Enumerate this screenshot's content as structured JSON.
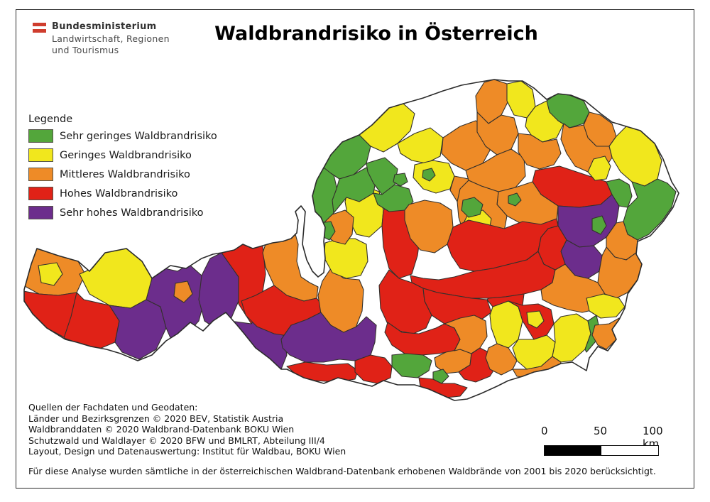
{
  "header": {
    "logo_lines": [
      "Bundesministerium",
      "Landwirtschaft, Regionen",
      "und Tourismus"
    ],
    "title": "Waldbrandrisiko in Österreich"
  },
  "legend": {
    "title": "Legende",
    "items": [
      {
        "key": "g",
        "label": "Sehr geringes Waldbrandrisiko"
      },
      {
        "key": "y",
        "label": "Geringes Waldbrandrisiko"
      },
      {
        "key": "o",
        "label": "Mittleres Waldbrandrisiko"
      },
      {
        "key": "r",
        "label": "Hohes Waldbrandrisiko"
      },
      {
        "key": "p",
        "label": "Sehr hohes Waldbrandrisiko"
      }
    ]
  },
  "colors": {
    "g": "#53a63b",
    "y": "#f1e71d",
    "o": "#ee8b27",
    "r": "#e02217",
    "p": "#6c2d8c",
    "district_stroke": "#33302c",
    "outline_stroke": "#2b2b2b",
    "flag_red": "#cf3d2e"
  },
  "sources": {
    "lines": [
      "Quellen der Fachdaten und Geodaten:",
      "Länder und Bezirksgrenzen © 2020 BEV, Statistik Austria",
      "Waldbranddaten © 2020 Waldbrand-Datenbank BOKU Wien",
      "Schutzwald und Waldlayer © 2020 BFW und BMLRT, Abteilung III/4",
      "Layout, Design und Datenauswertung: Institut für Waldbau, BOKU Wien"
    ]
  },
  "footnote": "Für diese Analyse wurden sämtliche in der österreichischen Waldbrand-Datenbank erhobenen Waldbrände von 2001 bis 2020 berücksichtigt.",
  "scalebar": {
    "labels": [
      "0",
      "50",
      "100 km"
    ]
  },
  "map": {
    "outline": "34,408 44,372 52,350 82,360 110,368 126,382 148,356 178,350 200,368 214,392 240,374 262,378 284,364 300,358 312,356 330,352 342,344 356,350 370,346 384,342 398,340 410,336 418,328 420,310 416,298 424,290 430,298 428,320 426,344 432,366 440,382 448,390 456,384 458,364 456,340 458,320 452,306 444,298 440,276 446,254 456,236 466,218 482,200 506,190 524,176 548,152 568,146 596,138 624,128 650,120 672,116 696,112 716,114 736,114 752,124 770,140 786,132 804,134 824,142 846,160 862,172 882,178 902,184 922,202 934,224 946,256 956,272 948,292 934,312 916,332 898,340 896,358 904,372 898,394 884,414 880,434 872,450 862,464 868,478 856,494 842,488 830,504 826,522 806,510 790,512 772,520 752,524 736,530 716,536 700,544 678,554 658,562 640,564 622,556 604,548 584,542 560,542 540,536 524,544 500,538 476,532 456,540 428,532 404,520 396,520 380,505 360,490 344,470 334,458 318,440 300,452 286,466 268,454 250,470 234,480 214,500 194,508 170,498 150,492 128,488 108,482 92,478 66,462 46,442 34,424",
    "cells": [
      {
        "c": "o",
        "p": "33,402 40,362 52,350 82,360 110,368 120,386 108,412 82,416 55,414"
      },
      {
        "c": "r",
        "p": "33,410 55,414 82,416 108,412 118,422 112,458 92,476 66,462 46,442 34,424"
      },
      {
        "c": "y",
        "p": "112,386 130,378 148,356 178,350 200,368 214,392 206,422 184,434 154,430 126,414"
      },
      {
        "c": "r",
        "p": "100,446 108,412 118,422 154,430 168,452 162,482 138,492 112,484 90,476"
      },
      {
        "c": "p",
        "p": "154,430 184,434 206,422 226,432 234,462 220,492 196,506 172,496 162,482 168,452"
      },
      {
        "c": "p",
        "p": "206,422 214,392 232,378 250,382 266,372 284,388 288,422 280,452 262,472 242,480 234,462 226,432"
      },
      {
        "c": "p",
        "p": "284,388 296,364 312,356 330,352 340,390 336,424 324,452 306,464 288,452 280,422"
      },
      {
        "c": "r",
        "p": "312,356 330,352 342,344 356,350 370,346 374,386 370,410 366,440 354,456 336,428 336,390"
      },
      {
        "c": "p",
        "p": "306,464 324,452 354,456 366,440 386,452 398,466 404,500 396,520 372,504 348,484 326,458"
      },
      {
        "c": "o",
        "p": "374,344 390,340 404,336 416,330 420,344 418,368 424,390 436,398 448,404 446,420 428,424 404,416 386,402 374,376 370,356"
      },
      {
        "c": "r",
        "p": "340,424 360,416 386,402 404,416 428,424 446,420 456,432 452,456 436,468 412,474 386,470 362,460 346,444"
      },
      {
        "c": "o",
        "p": "454,396 466,378 484,392 506,394 512,408 510,438 500,464 480,472 462,466 452,442 448,416"
      },
      {
        "c": "y",
        "p": "458,342 478,336 500,336 516,344 518,368 508,388 488,392 468,384 456,362"
      },
      {
        "c": "y",
        "p": "490,268 514,262 534,270 540,296 538,318 520,334 502,330 490,306 486,284"
      },
      {
        "c": "o",
        "p": "448,310 468,302 486,296 498,306 496,330 486,344 470,340 456,330 450,318"
      },
      {
        "c": "r",
        "p": "540,296 560,278 578,286 590,300 592,330 588,360 580,386 562,392 548,378 540,348 538,318"
      },
      {
        "c": "g",
        "p": "442,296 440,270 448,248 456,236 470,246 476,272 470,300 456,314 446,308"
      },
      {
        "c": "g",
        "p": "456,236 466,218 482,200 506,190 522,206 516,230 498,246 478,252 466,244"
      },
      {
        "c": "g",
        "p": "474,266 478,252 498,246 516,236 530,250 526,272 506,284 488,278 470,300 468,282"
      },
      {
        "c": "g",
        "p": "516,230 542,222 560,238 556,260 538,274 526,258 518,242"
      },
      {
        "c": "g",
        "p": "526,272 538,274 556,260 576,266 582,284 570,296 548,298 532,288"
      },
      {
        "c": "y",
        "p": "506,190 522,170 548,152 568,146 584,160 578,184 560,202 540,214 522,206"
      },
      {
        "c": "y",
        "p": "560,202 584,188 606,180 624,194 620,220 600,230 580,226 564,216"
      },
      {
        "c": "y",
        "p": "584,232 610,226 632,230 640,248 634,266 614,272 596,266 582,250"
      },
      {
        "c": "o",
        "p": "640,248 660,252 676,262 674,282 658,292 644,284 634,268"
      },
      {
        "c": "o",
        "p": "576,288 598,282 620,286 636,296 638,320 630,344 612,356 592,352 578,336 570,310 570,296"
      },
      {
        "c": "o",
        "p": "624,194 648,178 670,170 690,182 692,208 680,230 656,240 636,230 622,216"
      },
      {
        "c": "o",
        "p": "670,135 682,116 696,112 714,118 716,142 706,162 688,174 672,158"
      },
      {
        "c": "y",
        "p": "714,118 734,114 750,126 754,150 742,166 724,162 714,142"
      },
      {
        "c": "o",
        "p": "672,158 688,174 706,162 724,166 730,188 720,210 700,218 684,206 672,186"
      },
      {
        "c": "o",
        "p": "656,240 680,230 700,218 720,210 738,222 740,248 726,264 702,270 678,262 660,254"
      },
      {
        "c": "y",
        "p": "742,166 754,150 770,142 790,150 794,174 784,194 764,200 748,190 740,178"
      },
      {
        "c": "g",
        "p": "770,142 784,132 802,134 822,142 830,158 822,174 802,180 786,170 774,158"
      },
      {
        "c": "o",
        "p": "830,158 846,162 862,174 868,192 858,206 840,206 828,194 822,176"
      },
      {
        "c": "y",
        "p": "868,192 882,178 902,184 922,202 932,226 926,252 908,262 890,256 874,242 862,222 858,206"
      },
      {
        "c": "o",
        "p": "794,174 802,180 822,176 828,194 840,206 858,206 862,222 850,240 828,242 810,234 798,216 790,196"
      },
      {
        "c": "o",
        "p": "730,188 748,190 764,200 784,196 790,216 780,232 760,238 742,232 730,214"
      },
      {
        "c": "r",
        "p": "754,240 788,234 824,246 854,256 862,274 846,288 816,292 786,290 762,274 750,256"
      },
      {
        "c": "o",
        "p": "702,270 726,264 750,256 762,274 786,290 784,310 762,318 736,316 714,304 700,288"
      },
      {
        "c": "o",
        "p": "660,254 678,262 702,270 700,288 714,304 710,326 692,336 668,334 652,326 646,306 644,284 648,266"
      },
      {
        "c": "y",
        "p": "660,300 680,296 692,308 688,330 672,338 658,328 654,312"
      },
      {
        "c": "r",
        "p": "638,320 660,310 686,316 710,322 736,312 762,316 784,308 786,318 772,322 762,334 758,354 742,366 718,372 694,378 668,382 648,378 636,360 630,344"
      },
      {
        "c": "r",
        "p": "578,388 596,392 618,394 640,390 668,382 694,378 718,372 742,366 758,354 766,372 782,380 778,398 762,408 738,414 712,418 688,420 664,420 640,416 616,412 596,406 580,398"
      },
      {
        "c": "r",
        "p": "534,402 548,380 562,392 580,398 596,406 598,424 608,444 600,462 582,470 562,466 546,456 536,434"
      },
      {
        "c": "r",
        "p": "596,406 616,412 640,416 664,420 686,422 692,440 678,450 650,454 626,456 608,444 598,424"
      },
      {
        "c": "r",
        "p": "688,420 712,418 738,414 736,430 730,432 716,424 694,432 686,422"
      },
      {
        "c": "o",
        "p": "762,408 778,398 782,380 796,372 810,388 828,392 842,398 852,414 844,424 838,436 820,440 800,436 780,430 764,422"
      },
      {
        "c": "p",
        "p": "786,290 816,292 846,288 862,274 872,290 868,314 854,334 836,346 816,348 798,338 786,318"
      },
      {
        "c": "p",
        "p": "798,338 816,348 836,346 848,360 844,382 828,392 810,388 796,372 790,354"
      },
      {
        "c": "r",
        "p": "786,318 798,338 790,354 796,372 782,380 766,372 758,354 762,334 772,322"
      },
      {
        "c": "g",
        "p": "890,256 908,262 926,252 940,258 952,270 946,292 932,312 914,330 898,338 884,330 878,312 884,292 898,278"
      },
      {
        "c": "g",
        "p": "854,256 862,274 872,290 884,292 890,276 886,260 872,252"
      },
      {
        "c": "o",
        "p": "854,334 868,314 878,312 884,330 898,338 896,356 882,366 866,362 854,348"
      },
      {
        "c": "o",
        "p": "844,382 848,360 854,348 866,362 882,366 896,356 904,372 898,394 884,412 868,420 852,414 842,398"
      },
      {
        "c": "p",
        "p": "396,478 410,458 432,450 452,440 466,458 484,468 502,460 516,446 530,458 528,482 522,500 500,508 478,506 456,510 430,510 408,500 398,490"
      },
      {
        "c": "r",
        "p": "404,516 430,510 460,514 490,512 504,522 500,534 472,538 444,536 420,530"
      },
      {
        "c": "r",
        "p": "500,508 522,500 542,504 552,516 550,532 532,540 512,536 500,524"
      },
      {
        "c": "r",
        "p": "546,454 566,468 590,470 614,462 626,456 640,462 648,478 640,494 618,498 594,500 570,498 552,486 542,468"
      },
      {
        "c": "g",
        "p": "552,500 572,498 596,500 608,508 604,522 588,532 566,530 552,516"
      },
      {
        "c": "o",
        "p": "612,504 628,496 648,492 664,498 662,514 646,524 628,526 614,516"
      },
      {
        "c": "r",
        "p": "590,532 610,534 622,540 640,540 658,546 648,558 628,560 608,552 592,544"
      },
      {
        "c": "o",
        "p": "626,456 640,462 648,478 640,494 648,492 664,498 676,490 686,474 684,452 668,444 648,448"
      },
      {
        "c": "r",
        "p": "646,524 662,514 664,498 676,490 692,498 700,514 690,530 670,538 654,534"
      },
      {
        "c": "y",
        "p": "694,432 716,424 730,432 736,452 730,478 716,490 700,484 692,462 690,444"
      },
      {
        "c": "r",
        "p": "716,424 736,430 758,428 776,436 780,456 770,472 752,478 736,452 730,432"
      },
      {
        "c": "y",
        "p": "730,478 752,478 770,472 782,482 778,502 762,516 742,520 728,508 722,490"
      },
      {
        "c": "y",
        "p": "782,482 780,456 790,446 812,442 828,452 832,470 824,492 806,508 790,510 778,502"
      },
      {
        "c": "g",
        "p": "828,452 840,444 844,462 838,482 826,496 824,492 832,470"
      },
      {
        "c": "y",
        "p": "826,420 850,414 872,420 880,432 868,446 846,448 830,438"
      },
      {
        "c": "o",
        "p": "700,484 716,490 728,508 722,520 706,528 690,520 684,504 688,490"
      },
      {
        "c": "o",
        "p": "722,520 742,520 762,516 778,502 790,510 786,524 766,530 744,532 728,530"
      },
      {
        "c": "o",
        "p": "838,458 858,456 872,448 878,460 868,478 854,492 842,486 834,472"
      },
      {
        "c": "y",
        "p": "54,374 80,370 88,386 76,402 58,398"
      },
      {
        "c": "o",
        "p": "247,399 264,396 271,414 259,426 245,417"
      },
      {
        "c": "g",
        "p": "450,314 466,312 472,326 464,338 452,332"
      },
      {
        "c": "g",
        "p": "556,246 570,244 574,256 564,262 554,256"
      },
      {
        "c": "g",
        "p": "596,240 608,237 613,247 605,255 595,250"
      },
      {
        "c": "y",
        "p": "836,224 852,220 860,234 854,252 838,254 828,242"
      },
      {
        "c": "g",
        "p": "716,276 728,272 734,282 726,290 716,286"
      },
      {
        "c": "g",
        "p": "652,282 668,278 680,288 676,302 660,306 650,296"
      },
      {
        "c": "g",
        "p": "834,308 848,304 854,318 846,330 834,324"
      },
      {
        "c": "y",
        "p": "742,440 760,438 766,452 756,462 744,456"
      },
      {
        "c": "g",
        "p": "610,524 624,520 632,530 622,540 610,534"
      }
    ]
  }
}
